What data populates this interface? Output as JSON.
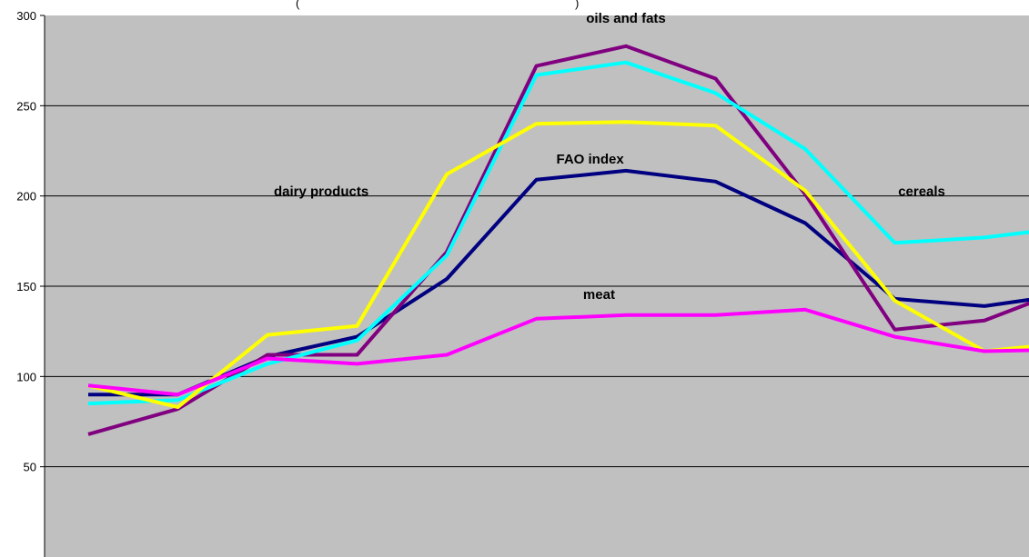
{
  "header_fragment": "(",
  "header_fragment_end": ")",
  "chart_data": {
    "type": "line",
    "title": "",
    "xlabel": "",
    "ylabel": "",
    "ylim": [
      0,
      300
    ],
    "y_ticks": [
      50,
      100,
      150,
      200,
      250,
      300
    ],
    "grid": true,
    "background_color": "#C0C0C0",
    "x": [
      1,
      2,
      3,
      4,
      5,
      6,
      7,
      8,
      9,
      10,
      11,
      12
    ],
    "series": [
      {
        "name": "FAO index",
        "color": "#000080",
        "values": [
          90,
          90,
          111,
          122,
          154,
          209,
          214,
          208,
          185,
          143,
          139,
          146
        ]
      },
      {
        "name": "oils and fats",
        "color": "#800080",
        "values": [
          68,
          82,
          112,
          112,
          169,
          272,
          283,
          265,
          201,
          126,
          131,
          150
        ]
      },
      {
        "name": "cereals",
        "color": "#00FFFF",
        "values": [
          85,
          87,
          107,
          120,
          167,
          267,
          274,
          257,
          226,
          174,
          177,
          183
        ]
      },
      {
        "name": "dairy products",
        "color": "#FFFF00",
        "values": [
          95,
          83,
          123,
          128,
          212,
          240,
          241,
          239,
          203,
          142,
          114,
          119
        ]
      },
      {
        "name": "meat",
        "color": "#FF00FF",
        "values": [
          95,
          90,
          110,
          107,
          112,
          132,
          134,
          134,
          137,
          122,
          114,
          115
        ]
      }
    ],
    "annotations": [
      {
        "text": "oils and fats",
        "x": 7,
        "y": 296
      },
      {
        "text": "FAO index",
        "x": 6.6,
        "y": 218
      },
      {
        "text": "dairy products",
        "x": 3.6,
        "y": 200
      },
      {
        "text": "cereals",
        "x": 10.3,
        "y": 200
      },
      {
        "text": "meat",
        "x": 6.7,
        "y": 143
      }
    ]
  }
}
